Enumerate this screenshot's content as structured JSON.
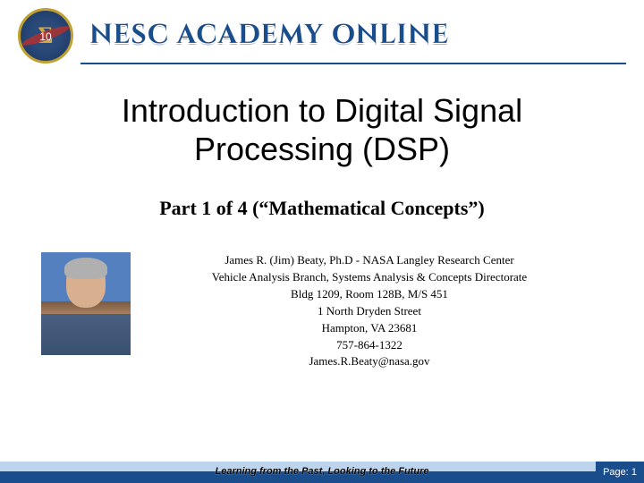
{
  "header": {
    "site_title": "NESC ACADEMY ONLINE",
    "logo_badge": "10"
  },
  "main": {
    "title": "Introduction to Digital Signal Processing (DSP)",
    "subtitle": "Part 1 of 4 (“Mathematical Concepts”)"
  },
  "info": {
    "line1": "James R. (Jim) Beaty, Ph.D - NASA Langley Research Center",
    "line2": "Vehicle Analysis Branch, Systems Analysis & Concepts Directorate",
    "line3": "Bldg 1209, Room 128B, M/S 451",
    "line4": "1 North Dryden Street",
    "line5": "Hampton, VA 23681",
    "line6": "757-864-1322",
    "line7": "James.R.Beaty@nasa.gov"
  },
  "footer": {
    "tagline": "Learning from the Past, Looking to the Future",
    "page_label": "Page: 1"
  },
  "colors": {
    "accent_blue": "#1a4d8c",
    "light_blue": "#bcd4ee",
    "gold": "#c0a030"
  }
}
